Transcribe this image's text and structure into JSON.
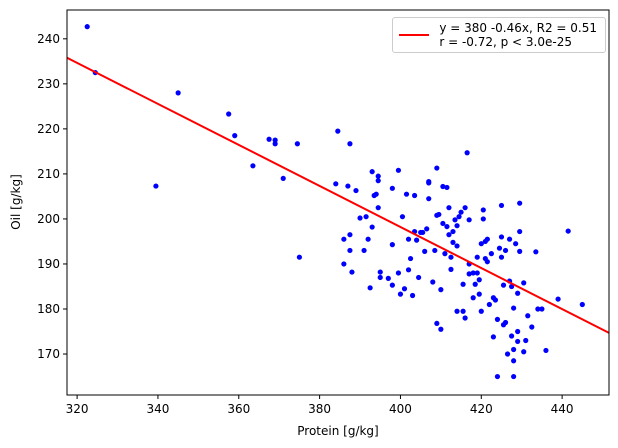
{
  "chart_data": {
    "type": "scatter",
    "xlabel": "Protein [g/kg]",
    "ylabel": "Oil [g/kg]",
    "xlim": [
      317.5,
      451.6
    ],
    "ylim": [
      160.9,
      246.4
    ],
    "xticks": [
      320,
      340,
      360,
      380,
      400,
      420,
      440
    ],
    "yticks": [
      170,
      180,
      190,
      200,
      210,
      220,
      230,
      240
    ],
    "legend": "upper right",
    "series": [
      {
        "color": "#0000ff",
        "x": [
          322.5,
          324.5,
          339.5,
          345,
          357.5,
          359,
          363.5,
          367.5,
          369,
          369,
          371,
          374.5,
          375,
          384.5,
          384,
          386,
          386,
          387,
          387.5,
          387.5,
          387.5,
          388,
          389,
          390,
          391,
          391.5,
          392,
          392.5,
          393,
          393,
          393.5,
          394,
          394.5,
          394.5,
          394.5,
          395,
          395,
          397,
          398,
          398,
          398,
          399.5,
          399.5,
          400,
          400.5,
          401,
          401.5,
          402,
          402,
          402.5,
          403,
          403.5,
          403.5,
          404,
          404.5,
          405,
          405.5,
          406,
          406.5,
          407,
          407,
          407,
          408,
          408.5,
          409,
          409,
          409,
          409.5,
          410,
          410,
          410.5,
          410.5,
          411,
          411.5,
          411.5,
          412,
          412,
          412.5,
          412.5,
          413,
          413,
          413.5,
          414,
          414,
          414,
          414.5,
          415,
          415.5,
          415.5,
          416,
          416,
          416.5,
          417,
          417,
          417,
          418,
          418,
          418.5,
          419,
          419,
          419.5,
          419.5,
          420,
          420,
          420.5,
          420.5,
          421,
          421,
          421.5,
          421.5,
          422,
          422.5,
          423,
          423,
          423.5,
          424,
          424,
          424.5,
          425,
          425,
          425,
          425.5,
          425.5,
          426,
          426,
          426.5,
          427,
          427,
          427.5,
          427.5,
          428,
          428,
          428,
          428,
          428.5,
          429,
          429,
          429,
          429.5,
          429.5,
          429.5,
          430.5,
          430.5,
          431,
          431.5,
          432.5,
          433.5,
          434,
          435,
          436,
          439,
          441.5,
          445
        ],
        "values": [
          242.7,
          232.5,
          207.3,
          228,
          223.3,
          218.5,
          211.8,
          217.7,
          217.5,
          216.7,
          209,
          216.7,
          191.5,
          219.5,
          207.8,
          195.5,
          190,
          207.3,
          216.7,
          196.5,
          193,
          188.2,
          206.3,
          200.2,
          193,
          200.5,
          195.5,
          184.7,
          210.5,
          198.2,
          205.2,
          205.5,
          208.5,
          209.5,
          202.5,
          188.2,
          187,
          186.8,
          206.8,
          194.3,
          185.3,
          210.8,
          188,
          183.3,
          200.5,
          184.5,
          205.5,
          195.5,
          188.7,
          191.2,
          183,
          205.2,
          197.2,
          195.3,
          187,
          197,
          197,
          192.8,
          197.8,
          204.5,
          208,
          208.3,
          186,
          193,
          211.3,
          200.8,
          176.8,
          201,
          175.5,
          184.3,
          207.2,
          199,
          192.3,
          207,
          198.3,
          202.5,
          196.5,
          188.8,
          191.5,
          197.2,
          194.8,
          199.8,
          198.5,
          194,
          179.5,
          200.5,
          201.5,
          185.5,
          179.5,
          202.5,
          178,
          214.7,
          199.8,
          190,
          187.8,
          188,
          182.5,
          185.5,
          191.5,
          188,
          186.5,
          183.3,
          194.5,
          179.5,
          202,
          200,
          195,
          191.2,
          195.5,
          190.5,
          181,
          192.3,
          182.5,
          173.8,
          182,
          177.7,
          165,
          193.5,
          203,
          196,
          191.5,
          185.3,
          176.5,
          177,
          193,
          170,
          195.5,
          186.2,
          174,
          185,
          168.5,
          180.2,
          165,
          171,
          194.5,
          183.5,
          175,
          172.8,
          203.5,
          197.2,
          192.8,
          185.8,
          170.5,
          173,
          178.5,
          176,
          192.7,
          180,
          180,
          170.8,
          182.2,
          197.3,
          181
        ]
      },
      {
        "type": "line",
        "name": "y = 380 -0.46x, R2 = 0.51\nr = -0.72, p < 3.0e-25",
        "color": "#ff0000",
        "x": [
          317.5,
          451.6
        ],
        "values": [
          235.8,
          174.7
        ]
      }
    ]
  }
}
